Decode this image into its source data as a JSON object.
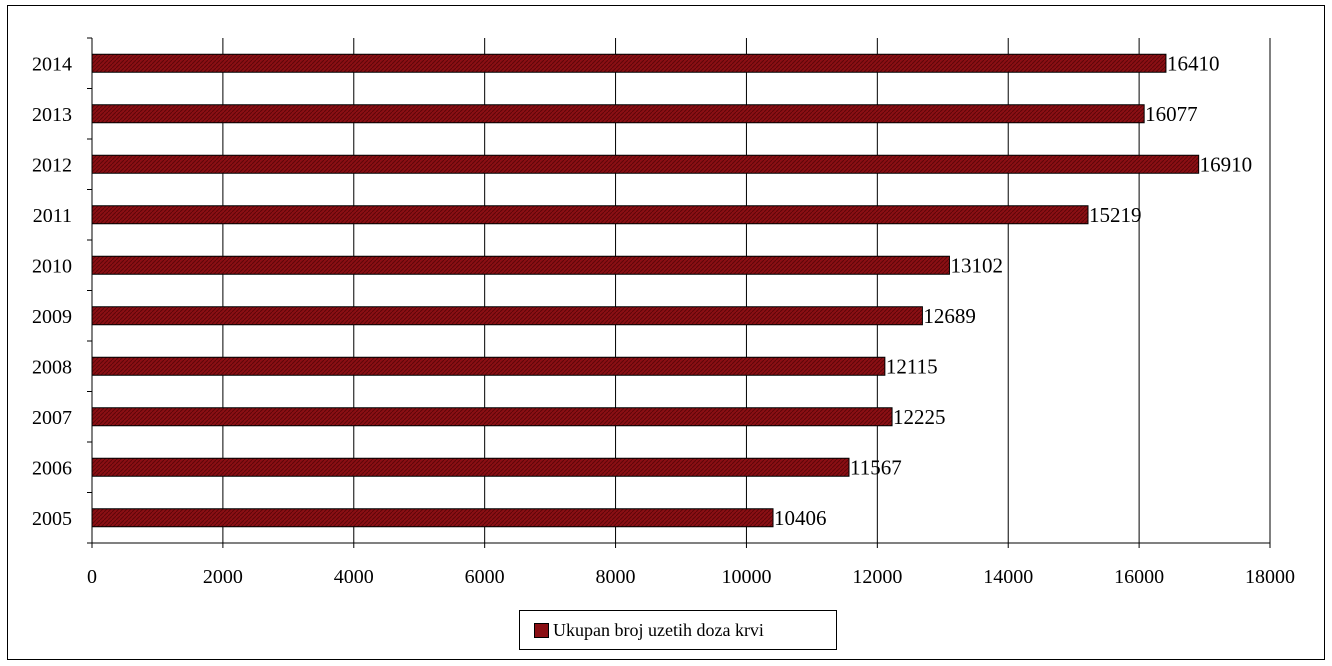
{
  "chart_data": {
    "type": "bar",
    "orientation": "horizontal",
    "categories": [
      "2005",
      "2006",
      "2007",
      "2008",
      "2009",
      "2010",
      "2011",
      "2012",
      "2013",
      "2014"
    ],
    "series": [
      {
        "name": "Ukupan broj uzetih doza krvi",
        "values": [
          10406,
          11567,
          12225,
          12115,
          12689,
          13102,
          15219,
          16910,
          16077,
          16410
        ],
        "color": "#8a0f14"
      }
    ],
    "xlim": [
      0,
      18000
    ],
    "xticks": [
      0,
      2000,
      4000,
      6000,
      8000,
      10000,
      12000,
      14000,
      16000,
      18000
    ],
    "grid": "vertical",
    "data_labels": true,
    "legend_position": "bottom"
  }
}
